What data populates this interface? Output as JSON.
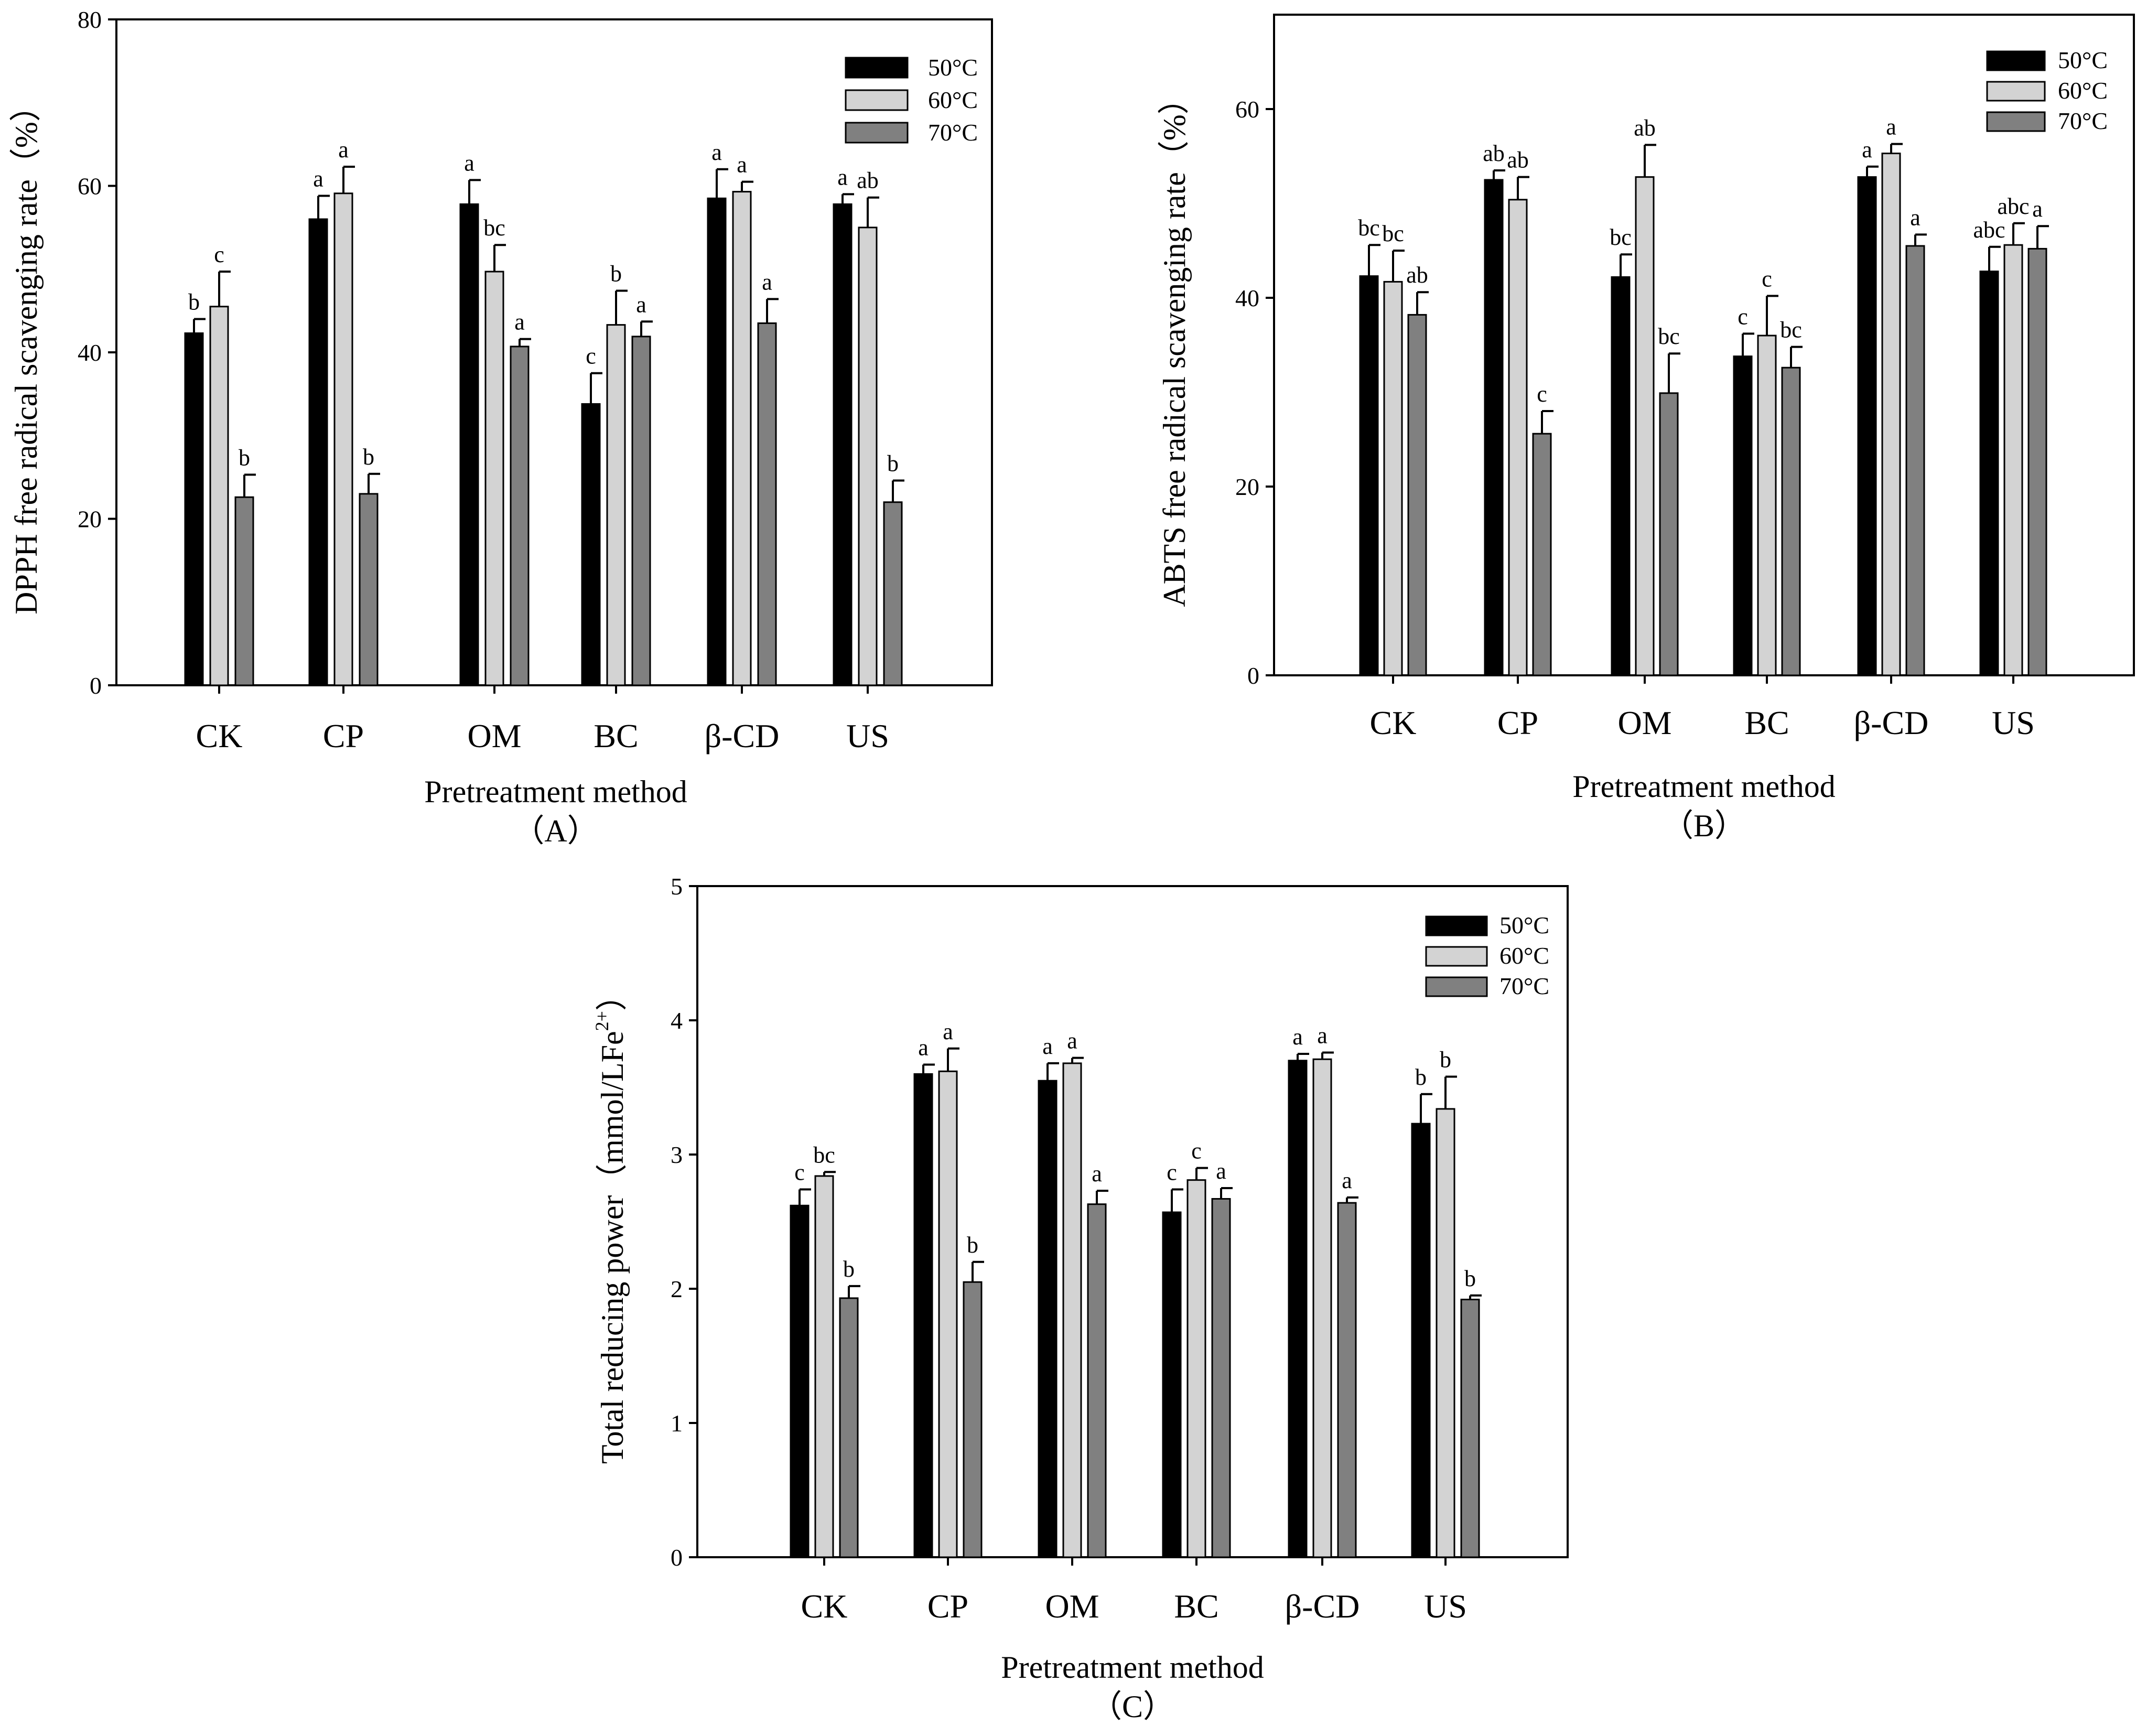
{
  "colors": {
    "50": "#000000",
    "60": "#d3d3d3",
    "70": "#808080",
    "axis": "#000000"
  },
  "chart_data": [
    {
      "id": "A",
      "type": "bar",
      "panel_label": "（A）",
      "xlabel": "Pretreatment method",
      "ylabel": "DPPH free radical scavenging rate（%）",
      "ylim": [
        0,
        80
      ],
      "yticks": [
        "0",
        "20",
        "40",
        "60",
        "80"
      ],
      "categories": [
        "CK",
        "CP",
        "OM",
        "BC",
        "β-CD",
        "US"
      ],
      "legend_position": "top-right",
      "series": [
        {
          "name": "50°C",
          "values": [
            42.3,
            56.0,
            57.8,
            33.8,
            58.5,
            57.8
          ],
          "errors": [
            1.7,
            2.8,
            2.9,
            3.7,
            3.5,
            1.2
          ],
          "letters": [
            "b",
            "a",
            "a",
            "c",
            "a",
            "a"
          ]
        },
        {
          "name": "60°C",
          "values": [
            45.5,
            59.1,
            49.7,
            43.3,
            59.3,
            55.0
          ],
          "errors": [
            4.2,
            3.2,
            3.2,
            4.1,
            1.2,
            3.6
          ],
          "letters": [
            "c",
            "a",
            "bc",
            "b",
            "a",
            "ab"
          ]
        },
        {
          "name": "70°C",
          "values": [
            22.6,
            23.0,
            40.7,
            41.9,
            43.5,
            22.0
          ],
          "errors": [
            2.7,
            2.4,
            0.9,
            1.8,
            2.9,
            2.6
          ],
          "letters": [
            "b",
            "b",
            "a",
            "a",
            "a",
            "b"
          ]
        }
      ]
    },
    {
      "id": "B",
      "type": "bar",
      "panel_label": "（B）",
      "xlabel": "Pretreatment method",
      "ylabel": "ABTS free radical scavenging rate（%）",
      "ylim": [
        0,
        70
      ],
      "yticks": [
        "0",
        "20",
        "40",
        "60"
      ],
      "categories": [
        "CK",
        "CP",
        "OM",
        "BC",
        "β-CD",
        "US"
      ],
      "legend_position": "top-right",
      "series": [
        {
          "name": "50°C",
          "values": [
            42.3,
            52.5,
            42.2,
            33.8,
            52.8,
            42.8
          ],
          "errors": [
            3.3,
            1.0,
            2.4,
            2.4,
            1.1,
            2.6
          ],
          "letters": [
            "bc",
            "ab",
            "bc",
            "c",
            "a",
            "abc"
          ]
        },
        {
          "name": "60°C",
          "values": [
            41.7,
            50.4,
            52.8,
            36.0,
            55.3,
            45.6
          ],
          "errors": [
            3.3,
            2.4,
            3.4,
            4.2,
            1.0,
            2.3
          ],
          "letters": [
            "bc",
            "ab",
            "ab",
            "c",
            "a",
            "abc"
          ]
        },
        {
          "name": "70°C",
          "values": [
            38.2,
            25.6,
            29.9,
            32.6,
            45.5,
            45.2
          ],
          "errors": [
            2.4,
            2.4,
            4.2,
            2.2,
            1.2,
            2.4
          ],
          "letters": [
            "ab",
            "c",
            "bc",
            "bc",
            "a",
            "a"
          ]
        }
      ]
    },
    {
      "id": "C",
      "type": "bar",
      "panel_label": "（C）",
      "xlabel": "Pretreatment method",
      "ylabel": "Total reducing power（mmol/LFe",
      "ylabel_superscript": "2+",
      "ylabel_suffix": "）",
      "ylim": [
        0,
        5
      ],
      "yticks": [
        "0",
        "1",
        "2",
        "3",
        "4",
        "5"
      ],
      "categories": [
        "CK",
        "CP",
        "OM",
        "BC",
        "β-CD",
        "US"
      ],
      "legend_position": "top-right",
      "series": [
        {
          "name": "50°C",
          "values": [
            2.62,
            3.6,
            3.55,
            2.57,
            3.7,
            3.23
          ],
          "errors": [
            0.12,
            0.07,
            0.13,
            0.17,
            0.05,
            0.22
          ],
          "letters": [
            "c",
            "a",
            "a",
            "c",
            "a",
            "b"
          ]
        },
        {
          "name": "60°C",
          "values": [
            2.84,
            3.62,
            3.68,
            2.81,
            3.71,
            3.34
          ],
          "errors": [
            0.03,
            0.17,
            0.04,
            0.09,
            0.05,
            0.24
          ],
          "letters": [
            "bc",
            "a",
            "a",
            "c",
            "a",
            "b"
          ]
        },
        {
          "name": "70°C",
          "values": [
            1.93,
            2.05,
            2.63,
            2.67,
            2.64,
            1.92
          ],
          "errors": [
            0.09,
            0.15,
            0.1,
            0.08,
            0.04,
            0.03
          ],
          "letters": [
            "b",
            "b",
            "a",
            "a",
            "a",
            "b"
          ]
        }
      ]
    }
  ]
}
